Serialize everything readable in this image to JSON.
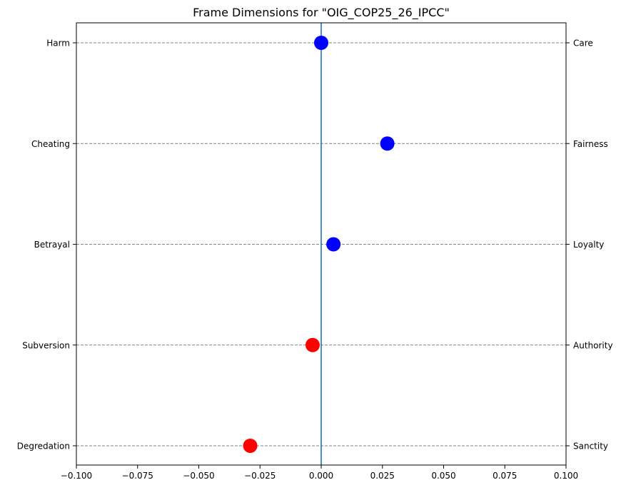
{
  "chart_data": {
    "type": "scatter",
    "title": "Frame Dimensions for \"OIG_COP25_26_IPCC\"",
    "xlabel": "",
    "ylabel": "",
    "xlim": [
      -0.1,
      0.1
    ],
    "x_ticks": [
      -0.1,
      -0.075,
      -0.05,
      -0.025,
      0.0,
      0.025,
      0.05,
      0.075,
      0.1
    ],
    "x_tick_labels": [
      "−0.100",
      "−0.075",
      "−0.050",
      "−0.025",
      "0.000",
      "0.025",
      "0.050",
      "0.075",
      "0.100"
    ],
    "categories_left": [
      "Harm",
      "Cheating",
      "Betrayal",
      "Subversion",
      "Degredation"
    ],
    "categories_right": [
      "Care",
      "Fairness",
      "Loyalty",
      "Authority",
      "Sanctity"
    ],
    "values": [
      0.0,
      0.027,
      0.005,
      -0.0035,
      -0.029
    ],
    "point_colors": [
      "#0000ff",
      "#0000ff",
      "#0000ff",
      "#ff0000",
      "#ff0000"
    ],
    "reference_line_x": 0.0,
    "reference_line_color": "#1f77b4",
    "gridlines": "horizontal dashed",
    "legend": "none"
  }
}
